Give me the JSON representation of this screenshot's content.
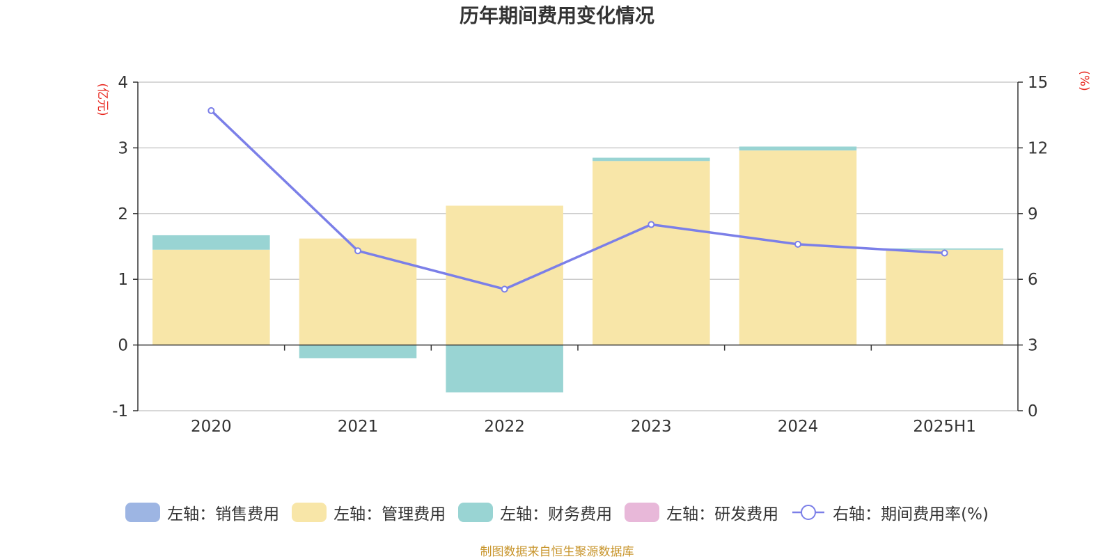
{
  "chart_data": {
    "type": "bar",
    "title": "历年期间费用变化情况",
    "categories": [
      "2020",
      "2021",
      "2022",
      "2023",
      "2024",
      "2025H1"
    ],
    "left_axis": {
      "unit": "(亿元)",
      "ylim": [
        -1,
        4
      ],
      "ticks": [
        "4",
        "3",
        "2",
        "1",
        "0",
        "-1"
      ]
    },
    "right_axis": {
      "unit": "(%)",
      "ylim": [
        0,
        15
      ],
      "ticks": [
        "15",
        "12",
        "9",
        "6",
        "3",
        "0"
      ]
    },
    "series": [
      {
        "name": "左轴：销售费用",
        "axis": "left",
        "color": "#9db5e3",
        "values": [
          0,
          0,
          0,
          0,
          0,
          0
        ]
      },
      {
        "name": "左轴：管理费用",
        "axis": "left",
        "color": "#f8e6a8",
        "values": [
          1.45,
          1.62,
          2.12,
          2.8,
          2.96,
          1.45
        ]
      },
      {
        "name": "左轴：财务费用",
        "axis": "left",
        "color": "#99d4d3",
        "values": [
          0.22,
          -0.2,
          -0.72,
          0.05,
          0.06,
          0.02
        ]
      },
      {
        "name": "左轴：研发费用",
        "axis": "left",
        "color": "#e8b8d9",
        "values": [
          0,
          0,
          0,
          0,
          0,
          0
        ]
      },
      {
        "name": "右轴：期间费用率(%)",
        "axis": "right",
        "type": "line",
        "color": "#7b7fe8",
        "values": [
          13.7,
          7.3,
          5.55,
          8.5,
          7.6,
          7.2
        ]
      }
    ],
    "grid": true,
    "legend_position": "bottom"
  },
  "footer": {
    "source": "制图数据来自恒生聚源数据库"
  }
}
